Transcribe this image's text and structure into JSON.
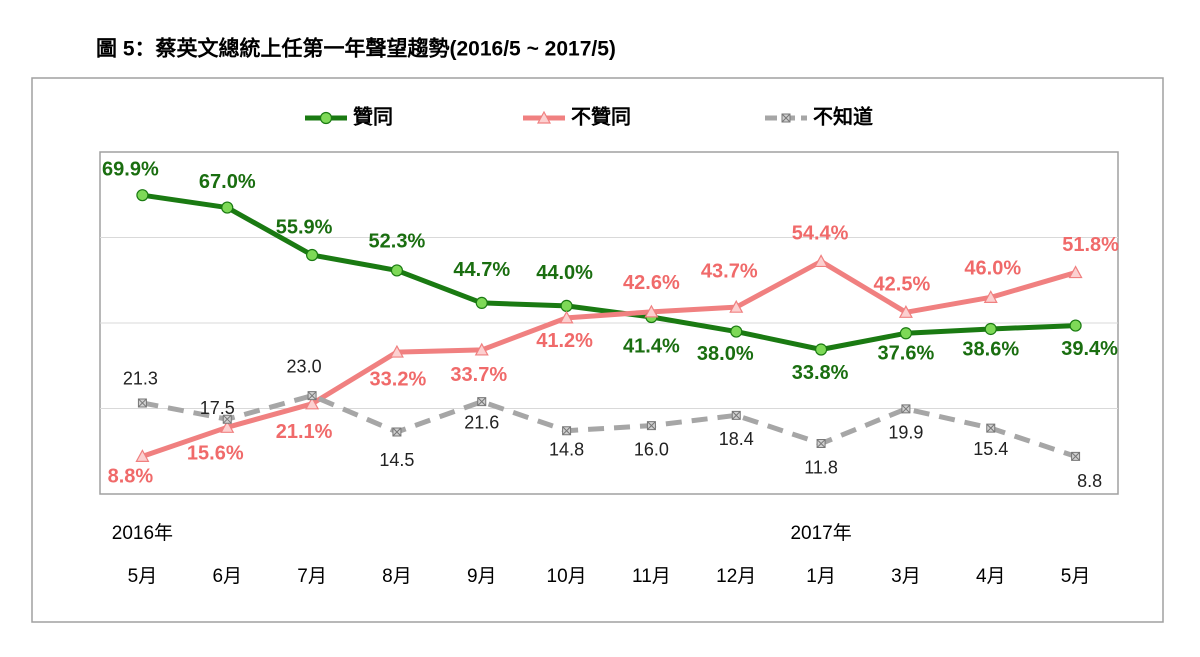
{
  "chart_data": {
    "type": "line",
    "title": "圖 5：蔡英文總統上任第一年聲望趨勢(2016/5 ~ 2017/5)",
    "year_labels": [
      "2016年",
      "2017年"
    ],
    "categories": [
      "5月",
      "6月",
      "7月",
      "8月",
      "9月",
      "10月",
      "11月",
      "12月",
      "1月",
      "3月",
      "4月",
      "5月"
    ],
    "series": [
      {
        "name": "贊同",
        "color": "#1a7a12",
        "values": [
          69.9,
          67.0,
          55.9,
          52.3,
          44.7,
          44.0,
          41.4,
          38.0,
          33.8,
          37.6,
          38.6,
          39.4
        ],
        "value_labels": [
          "69.9%",
          "67.0%",
          "55.9%",
          "52.3%",
          "44.7%",
          "44.0%",
          "41.4%",
          "38.0%",
          "33.8%",
          "37.6%",
          "38.6%",
          "39.4%"
        ]
      },
      {
        "name": "不贊同",
        "color": "#f08080",
        "values": [
          8.8,
          15.6,
          21.1,
          33.2,
          33.7,
          41.2,
          42.6,
          43.7,
          54.4,
          42.5,
          46.0,
          51.8
        ],
        "value_labels": [
          "8.8%",
          "15.6%",
          "21.1%",
          "33.2%",
          "33.7%",
          "41.2%",
          "42.6%",
          "43.7%",
          "54.4%",
          "42.5%",
          "46.0%",
          "51.8%"
        ]
      },
      {
        "name": "不知道",
        "color": "#a6a6a6",
        "values": [
          21.3,
          17.5,
          23.0,
          14.5,
          21.6,
          14.8,
          16.0,
          18.4,
          11.8,
          19.9,
          15.4,
          8.8
        ],
        "value_labels": [
          "21.3",
          "17.5",
          "23.0",
          "14.5",
          "21.6",
          "14.8",
          "16.0",
          "18.4",
          "11.8",
          "19.9",
          "15.4",
          "8.8"
        ]
      }
    ],
    "ylim": [
      0,
      80
    ],
    "yticks": [
      20,
      40,
      60
    ],
    "grid": true
  }
}
